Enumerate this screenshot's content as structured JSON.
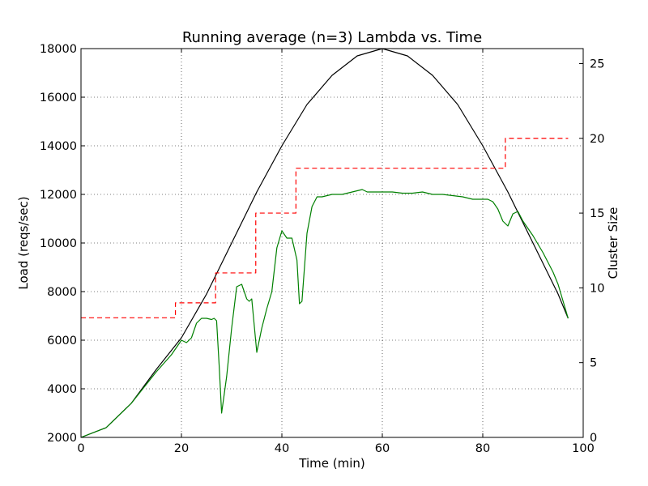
{
  "chart_data": {
    "type": "line",
    "title": "Running average (n=3) Lambda vs. Time",
    "xlabel": "Time (min)",
    "ylabel": "Load (reqs/sec)",
    "y2label": "Cluster Size",
    "xlim": [
      0,
      100
    ],
    "ylim": [
      2000,
      18000
    ],
    "y2lim": [
      0,
      26
    ],
    "x_ticks": [
      0,
      20,
      40,
      60,
      80,
      100
    ],
    "y_ticks": [
      2000,
      4000,
      6000,
      8000,
      10000,
      12000,
      14000,
      16000,
      18000
    ],
    "y2_ticks": [
      0,
      5,
      10,
      15,
      20,
      25
    ],
    "grid": true,
    "grid_style": "dotted",
    "legend": "none",
    "colors": {
      "load_curve": "#000000",
      "running_average": "#008000",
      "cluster_size": "#ff0000"
    },
    "series": [
      {
        "axis": "left",
        "style": "solid",
        "color": "#000000",
        "x": [
          0,
          5,
          10,
          15,
          20,
          25,
          30,
          35,
          40,
          45,
          50,
          55,
          60,
          65,
          70,
          75,
          80,
          85,
          90,
          95,
          97
        ],
        "y": [
          2000,
          2400,
          3400,
          4800,
          6100,
          7900,
          10000,
          12100,
          14000,
          15700,
          16900,
          17700,
          18000,
          17700,
          16900,
          15700,
          14000,
          12100,
          10000,
          7900,
          6900
        ]
      },
      {
        "axis": "left",
        "style": "solid",
        "color": "#008000",
        "x": [
          0,
          5,
          10,
          15,
          18,
          20,
          21,
          22,
          23,
          24,
          25,
          26,
          26.5,
          27,
          27.5,
          28,
          29,
          30,
          31,
          32,
          33,
          33.5,
          34,
          35,
          36,
          37,
          38,
          39,
          40,
          41,
          42,
          43,
          43.5,
          44,
          45,
          46,
          47,
          48,
          50,
          52,
          54,
          56,
          57,
          58,
          60,
          62,
          64,
          66,
          68,
          70,
          72,
          74,
          76,
          78,
          80,
          81,
          82,
          83,
          84,
          85,
          86,
          87,
          88,
          90,
          92,
          94,
          95,
          97
        ],
        "y": [
          2000,
          2400,
          3400,
          4700,
          5400,
          6000,
          5900,
          6100,
          6700,
          6900,
          6900,
          6850,
          6900,
          6800,
          5000,
          3000,
          4500,
          6500,
          8200,
          8300,
          7700,
          7600,
          7700,
          5500,
          6500,
          7300,
          8000,
          9800,
          10500,
          10200,
          10200,
          9300,
          7500,
          7600,
          10400,
          11500,
          11900,
          11900,
          12000,
          12000,
          12100,
          12200,
          12100,
          12100,
          12100,
          12100,
          12050,
          12050,
          12100,
          12000,
          12000,
          11950,
          11900,
          11800,
          11800,
          11800,
          11700,
          11400,
          10900,
          10700,
          11200,
          11300,
          10900,
          10300,
          9600,
          8800,
          8300,
          6900
        ]
      },
      {
        "axis": "right",
        "style": "dashed",
        "color": "#ff0000",
        "x": [
          0,
          18.8,
          18.8,
          26.8,
          26.8,
          34.8,
          34.8,
          42.8,
          42.8,
          84.5,
          84.5,
          97
        ],
        "y": [
          8,
          8,
          9,
          9,
          11,
          11,
          15,
          15,
          18,
          18,
          20,
          20
        ]
      }
    ]
  }
}
